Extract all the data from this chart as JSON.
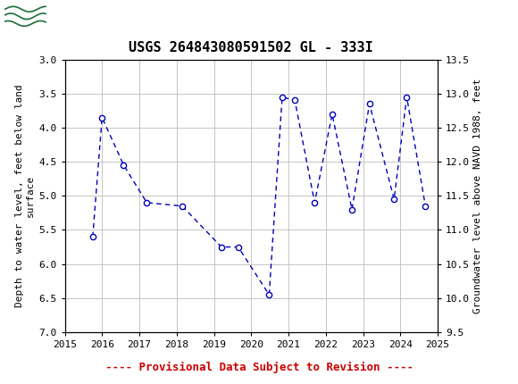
{
  "title": "USGS 264843080591502 GL - 333I",
  "xlabel_bottom": "---- Provisional Data Subject to Revision ----",
  "ylabel_left": "Depth to water level, feet below land\nsurface",
  "ylabel_right": "Groundwater level above NAVD 1988, feet",
  "x_years": [
    2015.75,
    2016.0,
    2016.58,
    2017.2,
    2018.15,
    2019.2,
    2019.65,
    2020.48,
    2020.83,
    2021.17,
    2021.7,
    2022.17,
    2022.7,
    2023.17,
    2023.83,
    2024.17,
    2024.67
  ],
  "y_depth": [
    5.6,
    3.85,
    4.55,
    5.1,
    5.15,
    5.75,
    5.75,
    6.45,
    3.55,
    3.6,
    5.1,
    3.8,
    5.2,
    3.65,
    5.05,
    3.55,
    5.15
  ],
  "xlim": [
    2015,
    2025
  ],
  "ylim_left": [
    7.0,
    3.0
  ],
  "ylim_right": [
    9.5,
    13.5
  ],
  "xticks": [
    2015,
    2016,
    2017,
    2018,
    2019,
    2020,
    2021,
    2022,
    2023,
    2024,
    2025
  ],
  "yticks_left": [
    3.0,
    3.5,
    4.0,
    4.5,
    5.0,
    5.5,
    6.0,
    6.5,
    7.0
  ],
  "yticks_right": [
    9.5,
    10.0,
    10.5,
    11.0,
    11.5,
    12.0,
    12.5,
    13.0,
    13.5
  ],
  "line_color": "#0000BB",
  "marker_color": "#0000BB",
  "marker_face": "white",
  "grid_color": "#BBBBBB",
  "background_color": "#ffffff",
  "header_color": "#1a6e39",
  "provisional_color": "#CC0000",
  "title_fontsize": 11,
  "axis_label_fontsize": 8,
  "tick_fontsize": 8,
  "provisional_fontsize": 9
}
